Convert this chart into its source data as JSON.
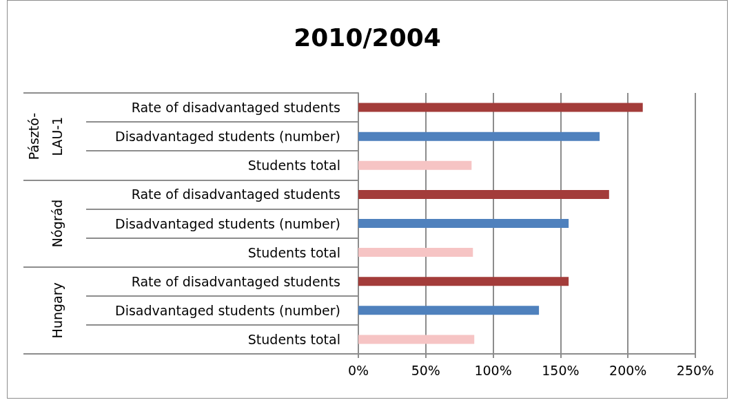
{
  "chart_data": {
    "type": "bar",
    "orientation": "horizontal",
    "title": "2010/2004",
    "categories": [
      "Rate of disadvantaged students",
      "Disadvantaged students (number)",
      "Students total",
      "Rate of disadvantaged students",
      "Disadvantaged students (number)",
      "Students total",
      "Rate of disadvantaged students",
      "Disadvantaged students (number)",
      "Students total"
    ],
    "values": [
      211,
      179,
      84,
      186,
      156,
      85,
      156,
      134,
      86
    ],
    "colors": [
      "#a33c3a",
      "#4f81bd",
      "#f6c4c4",
      "#a33c3a",
      "#4f81bd",
      "#f6c4c4",
      "#a33c3a",
      "#4f81bd",
      "#f6c4c4"
    ],
    "annotations": [
      "Pásztó-LAU-1",
      "Nógrád",
      "Hungary"
    ],
    "xlim": [
      0,
      250
    ],
    "xticks": [
      {
        "value": 0,
        "label": "0%"
      },
      {
        "value": 50,
        "label": "50%"
      },
      {
        "value": 100,
        "label": "100%"
      },
      {
        "value": 150,
        "label": "150%"
      },
      {
        "value": 200,
        "label": "200%"
      },
      {
        "value": 250,
        "label": "250%"
      }
    ],
    "grid": "x"
  }
}
